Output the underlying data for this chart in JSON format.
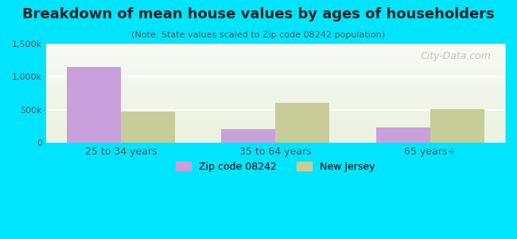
{
  "title": "Breakdown of mean house values by ages of householders",
  "subtitle": "(Note: State values scaled to Zip code 08242 population)",
  "categories": [
    "25 to 34 years",
    "35 to 64 years",
    "65 years+"
  ],
  "zip_values": [
    1150000,
    210000,
    240000
  ],
  "nj_values": [
    470000,
    610000,
    510000
  ],
  "zip_color": "#c9a0dc",
  "nj_color": "#c8cc99",
  "background_outer": "#00e5ff",
  "background_inner_top": "#f0f5e8",
  "background_inner_bottom": "#ffffff",
  "ylim": [
    0,
    1500000
  ],
  "yticks": [
    0,
    500000,
    1000000,
    1500000
  ],
  "ytick_labels": [
    "0",
    "500k",
    "1,000k",
    "1,500k"
  ],
  "bar_width": 0.35,
  "legend_zip_label": "Zip code 08242",
  "legend_nj_label": "New Jersey",
  "watermark": "City-Data.com"
}
